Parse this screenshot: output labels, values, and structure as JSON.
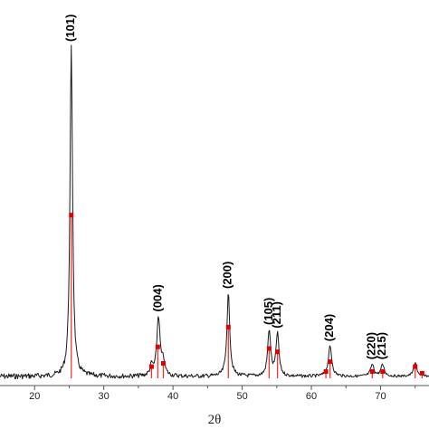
{
  "chart_data": {
    "type": "line",
    "title": "",
    "xlabel": "2θ",
    "ylabel": "",
    "xlim": [
      15,
      77
    ],
    "ylim": [
      0,
      100
    ],
    "x_ticks": [
      "20",
      "30",
      "40",
      "50",
      "60",
      "70"
    ],
    "grid": false,
    "legend": "none",
    "colors": {
      "pattern": "#1a1a1a",
      "reference": "#ff3030",
      "reference_marker": "#e00000",
      "axis": "#555555"
    },
    "peaks": [
      {
        "label": "(101)",
        "x": 25.3,
        "y": 100,
        "width": 0.22
      },
      {
        "label": "(004)",
        "x": 37.9,
        "y": 18,
        "width": 0.28
      },
      {
        "label": "(200)",
        "x": 48.0,
        "y": 25,
        "width": 0.25
      },
      {
        "label": "(105)",
        "x": 53.9,
        "y": 14,
        "width": 0.25
      },
      {
        "label": "(211)",
        "x": 55.1,
        "y": 13,
        "width": 0.25
      },
      {
        "label": "(204)",
        "x": 62.7,
        "y": 9,
        "width": 0.3
      },
      {
        "label": "(220)",
        "x": 68.8,
        "y": 3.5,
        "width": 0.3
      },
      {
        "label": "(215)",
        "x": 70.3,
        "y": 3.5,
        "width": 0.3
      },
      {
        "label": "",
        "x": 75.0,
        "y": 4,
        "width": 0.3
      }
    ],
    "minor_peaks": [
      {
        "x": 36.9,
        "y": 3
      },
      {
        "x": 38.6,
        "y": 4
      }
    ],
    "reference_lines": [
      {
        "x": 25.3,
        "y": 49
      },
      {
        "x": 36.9,
        "y": 3
      },
      {
        "x": 37.8,
        "y": 9
      },
      {
        "x": 38.6,
        "y": 4
      },
      {
        "x": 48.0,
        "y": 15
      },
      {
        "x": 53.9,
        "y": 8.5
      },
      {
        "x": 55.1,
        "y": 7.5
      },
      {
        "x": 62.1,
        "y": 1.5
      },
      {
        "x": 62.7,
        "y": 4.5
      },
      {
        "x": 68.8,
        "y": 1.5
      },
      {
        "x": 70.3,
        "y": 1.5
      },
      {
        "x": 75.0,
        "y": 3
      },
      {
        "x": 76.0,
        "y": 1
      }
    ]
  }
}
